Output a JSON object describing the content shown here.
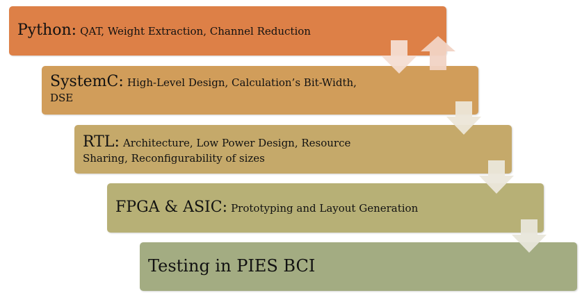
{
  "steps": [
    {
      "title": "Python:",
      "desc": "QAT, Weight Extraction, Channel Reduction",
      "color": "#dd8047"
    },
    {
      "title": "SystemC:",
      "desc_line1": "High-Level Design, Calculation’s Bit-Width,",
      "desc_line2": "DSE",
      "color": "#d19d5a"
    },
    {
      "title": "RTL:",
      "desc_line1": "Architecture, Low Power Design, Resource",
      "desc_line2": "Sharing, Reconfigurability of sizes",
      "color": "#c5a96a"
    },
    {
      "title": "FPGA & ASIC:",
      "desc": "Prototyping and Layout Generation",
      "color": "#b7b076"
    },
    {
      "title": "Testing in PIES BCI",
      "color": "#a3ac82"
    }
  ],
  "colors": {
    "arrow_light": "#f4ddd2",
    "arrow_beige": "#ece6d8",
    "arrow_olive": "#e8e6da"
  },
  "icons": [
    "down-arrow-icon",
    "up-arrow-icon"
  ]
}
